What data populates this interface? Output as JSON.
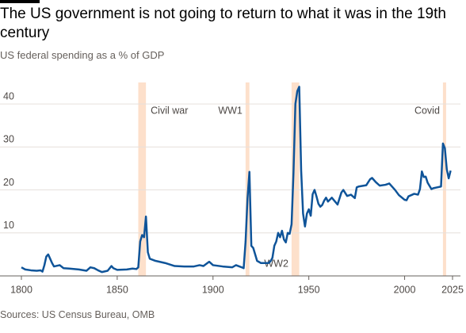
{
  "chart_data": {
    "type": "line",
    "title": "The US government is not going to return to what it was in the 19th century",
    "subtitle": "US federal spending as a % of GDP",
    "source": "Sources: US Census Bureau, OMB",
    "color": "#0f5499",
    "band_color": "#fde0cb",
    "grid": true,
    "xlim": [
      1800,
      2025
    ],
    "xticks": [
      1800,
      1850,
      1900,
      1950,
      2000,
      2025
    ],
    "ylim": [
      0,
      45
    ],
    "yticks": [
      10,
      20,
      30,
      40
    ],
    "shaded_periods": [
      {
        "label": "Civil war",
        "start": 1861,
        "end": 1865
      },
      {
        "label": "WW1",
        "start": 1917,
        "end": 1919
      },
      {
        "label": "WW2",
        "start": 1941,
        "end": 1945
      },
      {
        "label": "Covid",
        "start": 2020,
        "end": 2021
      }
    ],
    "x": [
      1800,
      1802,
      1805,
      1808,
      1810,
      1811,
      1812,
      1813,
      1814,
      1815,
      1816,
      1817,
      1820,
      1822,
      1825,
      1830,
      1834,
      1836,
      1838,
      1840,
      1842,
      1845,
      1847,
      1848,
      1850,
      1855,
      1858,
      1860,
      1861,
      1862,
      1863,
      1864,
      1865,
      1866,
      1867,
      1870,
      1875,
      1880,
      1885,
      1890,
      1893,
      1895,
      1898,
      1900,
      1905,
      1910,
      1912,
      1915,
      1916,
      1917,
      1918,
      1919,
      1920,
      1921,
      1922,
      1923,
      1925,
      1929,
      1930,
      1931,
      1932,
      1933,
      1934,
      1935,
      1936,
      1937,
      1938,
      1939,
      1940,
      1941,
      1942,
      1943,
      1944,
      1945,
      1946,
      1947,
      1948,
      1949,
      1950,
      1951,
      1952,
      1953,
      1954,
      1955,
      1956,
      1957,
      1958,
      1959,
      1960,
      1962,
      1965,
      1967,
      1968,
      1970,
      1972,
      1974,
      1975,
      1976,
      1980,
      1982,
      1983,
      1985,
      1987,
      1990,
      1992,
      1995,
      1997,
      2000,
      2001,
      2002,
      2005,
      2007,
      2008,
      2009,
      2010,
      2011,
      2012,
      2014,
      2015,
      2017,
      2019,
      2020,
      2021,
      2022,
      2023,
      2024
    ],
    "values": [
      2,
      1.5,
      1.3,
      1.2,
      1.3,
      1,
      2.5,
      4.5,
      5,
      4,
      3,
      2.2,
      2.5,
      1.8,
      1.7,
      1.5,
      1.2,
      2,
      1.8,
      1.3,
      0.9,
      1.2,
      2.3,
      1.8,
      1.4,
      1.5,
      1.7,
      1.6,
      2,
      8,
      9.5,
      9,
      13.8,
      5.5,
      4,
      3.5,
      3,
      2.3,
      2.2,
      2.2,
      2.5,
      2.3,
      3.3,
      2.5,
      2.2,
      2,
      2.5,
      2,
      1.8,
      8,
      18,
      24.2,
      7,
      6.5,
      5,
      3.5,
      3,
      3,
      3.4,
      4.2,
      7,
      8,
      10,
      9,
      10.5,
      8.5,
      7.8,
      10,
      9.8,
      12,
      24,
      40,
      43,
      44,
      24.5,
      14.5,
      11.5,
      14.5,
      15.5,
      14,
      19,
      20,
      18.5,
      16.8,
      16.1,
      16.5,
      17.5,
      18.2,
      17.3,
      18.2,
      16.6,
      19.4,
      20,
      18.6,
      18.9,
      18.1,
      20.6,
      20.8,
      21.1,
      22.5,
      22.8,
      21.8,
      21,
      21.2,
      21.5,
      20,
      18.8,
      17.7,
      17.6,
      18.5,
      19.1,
      18.9,
      20.2,
      24.3,
      23,
      23.1,
      21.7,
      20.2,
      20.4,
      20.6,
      20.8,
      30.8,
      29.7,
      24.8,
      22.7,
      24.5
    ]
  }
}
